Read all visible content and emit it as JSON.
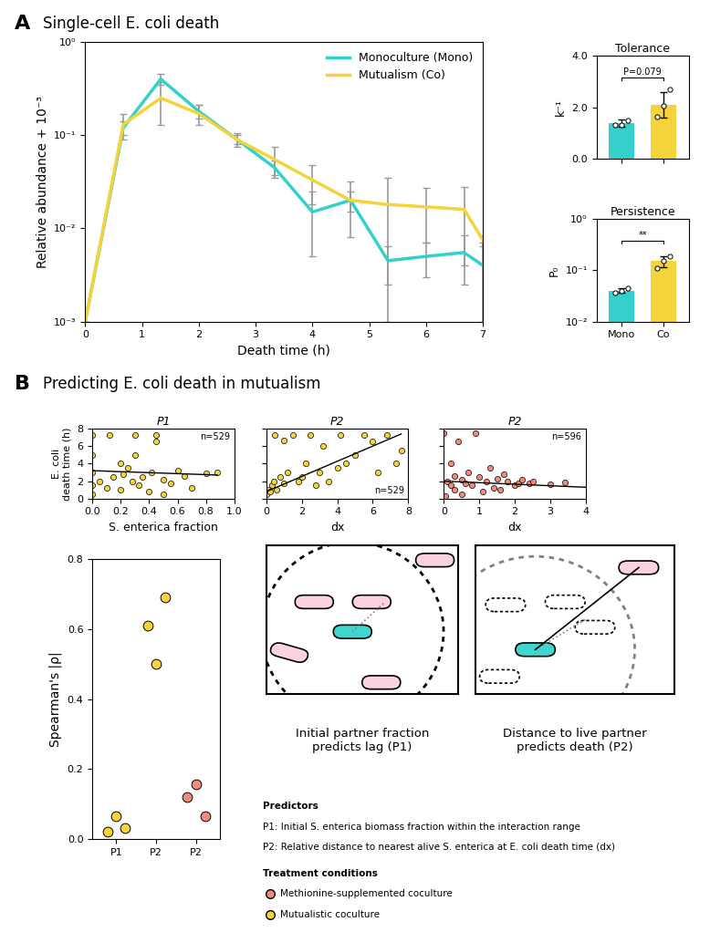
{
  "chart_data": [
    {
      "type": "line",
      "xlabel": "Death time (h)",
      "ylabel": "Relative abundance + 10⁻³",
      "log": "y",
      "legend": "upper right",
      "x": [
        0,
        0.67,
        1.33,
        2,
        2.67,
        3.33,
        4,
        4.67,
        5.33,
        6,
        6.67,
        7
      ],
      "xlim": [
        0,
        7
      ],
      "xticks": [
        0,
        1,
        2,
        3,
        4,
        5,
        6,
        7
      ],
      "ylim": [
        0.001,
        1
      ],
      "yticks": [
        {
          "value": 0.001,
          "label": "10⁻³"
        },
        {
          "value": 0.01,
          "label": "10⁻²"
        },
        {
          "value": 0.1,
          "label": "10⁻¹"
        },
        {
          "value": 1,
          "label": "10⁰"
        }
      ],
      "series": [
        {
          "name": "Monoculture (Mono)",
          "color": "#35d0cc",
          "values": [
            0.001,
            0.12,
            0.4,
            0.18,
            0.09,
            0.045,
            0.015,
            0.02,
            0.0045,
            0.005,
            0.0055,
            0.004
          ],
          "errors": [
            0,
            0.02,
            0.05,
            0.03,
            0.01,
            0.008,
            0.01,
            0.005,
            0.002,
            0.002,
            0.003,
            0.003
          ]
        },
        {
          "name": "Mutualism (Co)",
          "color": "#f5d33a",
          "values": [
            0.001,
            0.13,
            0.25,
            0.17,
            0.09,
            0.055,
            0.033,
            0.02,
            0.018,
            0.017,
            0.016,
            0.0075
          ],
          "errors": [
            0,
            0.04,
            0.12,
            0.04,
            0.015,
            0.02,
            0.015,
            0.012,
            0.017,
            0.01,
            0.012,
            0.001
          ]
        }
      ]
    },
    {
      "type": "bar",
      "title": "Tolerance",
      "ylabel": "k⁻¹",
      "categories": [
        "Mono",
        "Co"
      ],
      "values": [
        1.38,
        2.1
      ],
      "errors": [
        0.15,
        0.5
      ],
      "points": [
        [
          1.3,
          1.32,
          1.5
        ],
        [
          1.62,
          2.05,
          2.7
        ]
      ],
      "colors": [
        "#35d0cc",
        "#f5d33a"
      ],
      "ylim": [
        0,
        4
      ],
      "yticks": [
        {
          "value": 0,
          "label": "0.0"
        },
        {
          "value": 2,
          "label": "2.0"
        },
        {
          "value": 4,
          "label": "4.0"
        }
      ],
      "annotation": "P=0.079",
      "tick_labels": "y"
    },
    {
      "type": "bar",
      "title": "Persistence",
      "ylabel": "P₀",
      "log": "y",
      "categories": [
        "Mono",
        "Co"
      ],
      "values": [
        0.04,
        0.15
      ],
      "errors": [
        0.004,
        0.035
      ],
      "points": [
        [
          0.036,
          0.04,
          0.045
        ],
        [
          0.11,
          0.15,
          0.19
        ]
      ],
      "colors": [
        "#35d0cc",
        "#f5d33a"
      ],
      "ylim": [
        0.01,
        1
      ],
      "yticks": [
        {
          "value": 0.01,
          "label": "10⁻²"
        },
        {
          "value": 0.1,
          "label": "10⁻¹"
        },
        {
          "value": 1,
          "label": "10⁰"
        }
      ],
      "annotation": "**"
    },
    {
      "type": "scatter",
      "title": "P1",
      "xlabel": "S. enterica fraction",
      "ylabel": "E. coli\ndeath time (h)",
      "color": "#f5d33a",
      "annotation": "n=529",
      "x": [
        0,
        0,
        0,
        0,
        0,
        0.05,
        0.1,
        0.12,
        0.15,
        0.2,
        0.22,
        0.25,
        0.28,
        0.3,
        0.33,
        0.35,
        0.4,
        0.42,
        0.45,
        0.5,
        0.55,
        0.6,
        0.65,
        0.7,
        0.8,
        0.88,
        0.3,
        0.45,
        0.2,
        0.5
      ],
      "y": [
        0.5,
        1.5,
        3,
        5,
        7.3,
        2,
        1.2,
        7.3,
        2.5,
        1,
        2.8,
        3.5,
        2,
        7.3,
        1.5,
        2.5,
        0.8,
        3,
        6.5,
        2.2,
        1.8,
        3.2,
        2.6,
        1.2,
        2.9,
        3,
        5,
        7.3,
        4,
        0.5
      ],
      "fit": {
        "x": [
          0,
          0.88
        ],
        "y": [
          3.2,
          2.7
        ]
      },
      "xlim": [
        0,
        1
      ],
      "xticks": [
        {
          "value": 0,
          "label": "0.0"
        },
        0.2,
        0.4,
        0.6,
        0.8,
        {
          "value": 1,
          "label": "1.0"
        }
      ],
      "ylim": [
        0,
        8
      ],
      "yticks": [
        0,
        2,
        4,
        6,
        8
      ]
    },
    {
      "type": "scatter",
      "title": "P2",
      "xlabel": "dx",
      "color": "#f5d33a",
      "annotation": "n=529",
      "tick_labels": "x",
      "x": [
        0,
        0.1,
        0.2,
        0.3,
        0.4,
        0.5,
        0.6,
        0.8,
        1,
        1.2,
        1.5,
        1.8,
        2,
        2.2,
        2.5,
        3,
        3.2,
        3.5,
        4,
        4.2,
        4.5,
        5,
        5.5,
        6,
        6.3,
        6.8,
        7.3,
        7.6,
        1,
        2.8
      ],
      "y": [
        0.5,
        1,
        0.8,
        1.5,
        2,
        7.3,
        1,
        2.5,
        1.8,
        3,
        7.3,
        2,
        2.5,
        4,
        7.3,
        3,
        6,
        2,
        3.5,
        7.3,
        4,
        5,
        7.3,
        6.5,
        3,
        7.3,
        4,
        5.5,
        6.7,
        1.5
      ],
      "fit": {
        "x": [
          0,
          7.6
        ],
        "y": [
          0.8,
          7.4
        ]
      },
      "xlim": [
        0,
        8
      ],
      "xticks": [
        0,
        2,
        4,
        6,
        8
      ],
      "ylim": [
        0,
        8
      ],
      "yticks": [
        0,
        2,
        4,
        6,
        8
      ]
    },
    {
      "type": "scatter",
      "title": "P2",
      "xlabel": "dx",
      "color": "#f08a7a",
      "annotation": "n=596",
      "tick_labels": "x",
      "x": [
        0,
        0.1,
        0.2,
        0.3,
        0.4,
        0.5,
        0.6,
        0.7,
        0.8,
        1,
        1.1,
        1.2,
        1.4,
        1.5,
        1.6,
        1.8,
        2,
        2.1,
        2.2,
        2.4,
        2.5,
        3,
        3.4,
        0.2,
        0.5,
        0.9,
        1.3,
        1.7,
        0.05,
        0.3
      ],
      "y": [
        7.5,
        2,
        1.5,
        1,
        6.5,
        2.2,
        1.8,
        3,
        1.5,
        2.5,
        0.8,
        2,
        1.2,
        2.3,
        1,
        2,
        1.5,
        1.8,
        2.2,
        1.7,
        2,
        1.6,
        1.9,
        4,
        0.5,
        7.5,
        3.5,
        2.8,
        0.3,
        2.6
      ],
      "fit": {
        "x": [
          0,
          4
        ],
        "y": [
          2.0,
          1.3
        ]
      },
      "xlim": [
        0,
        4
      ],
      "xticks": [
        0,
        1,
        2,
        3,
        4
      ],
      "ylim": [
        0,
        8
      ],
      "yticks": [
        0,
        2,
        4,
        6,
        8
      ]
    },
    {
      "type": "scatter",
      "ylabel": "Spearman's |ρ|",
      "categories": [
        "P1",
        "P2",
        "P2"
      ],
      "values": [
        [
          0.02,
          0.065,
          0.03
        ],
        [
          0.61,
          0.5,
          0.69
        ],
        [
          0.12,
          0.155,
          0.065
        ]
      ],
      "colors": [
        "#f5d33a",
        "#f5d33a",
        "#f08a7a"
      ],
      "ylim": [
        0,
        0.8
      ],
      "yticks": [
        {
          "value": 0,
          "label": "0.0"
        },
        0.2,
        0.4,
        0.6,
        0.8
      ]
    }
  ],
  "panels": [
    {
      "label": "A",
      "title": "Single-cell E. coli death"
    },
    {
      "label": "B",
      "title": "Predicting E. coli death in mutualism"
    }
  ],
  "diagram": {
    "captions": [
      "Initial partner fraction\npredicts lag (P1)",
      "Distance to live partner\npredicts death (P2)"
    ],
    "predictors_title": "Predictors",
    "predictors": [
      "P1: Initial S. enterica biomass fraction within the interaction range",
      "P2: Relative distance to nearest alive S. enterica at E. coli death time (dx)"
    ],
    "conditions_title": "Treatment conditions",
    "conditions": [
      {
        "name": "Methionine-supplemented coculture",
        "color": "#f08a7a"
      },
      {
        "name": "Mutualistic coculture",
        "color": "#f5d33a"
      }
    ]
  }
}
